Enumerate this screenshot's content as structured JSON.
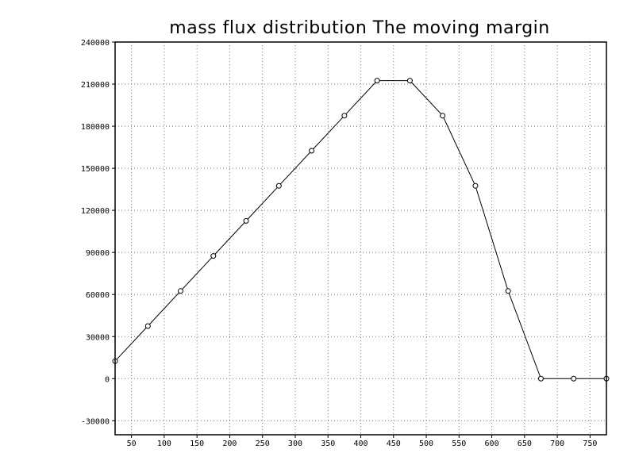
{
  "chart_data": {
    "type": "line",
    "title": "mass flux distribution The moving margin",
    "xlabel": "",
    "ylabel": "",
    "xlim": [
      25,
      775
    ],
    "ylim": [
      -40000,
      240000
    ],
    "xticks": [
      50,
      100,
      150,
      200,
      250,
      300,
      350,
      400,
      450,
      500,
      550,
      600,
      650,
      700,
      750
    ],
    "yticks": [
      -30000,
      0,
      30000,
      60000,
      90000,
      120000,
      150000,
      180000,
      210000,
      240000
    ],
    "grid": true,
    "series": [
      {
        "x": [
          25,
          75,
          125,
          175,
          225,
          275,
          325,
          375,
          425,
          475,
          525,
          575,
          625,
          675,
          725,
          775
        ],
        "values": [
          12500,
          37500,
          62500,
          87500,
          112500,
          137500,
          162500,
          187500,
          212500,
          212500,
          187500,
          137500,
          62500,
          0,
          0,
          0
        ],
        "marker": "open-circle",
        "color": "#000000"
      }
    ]
  }
}
